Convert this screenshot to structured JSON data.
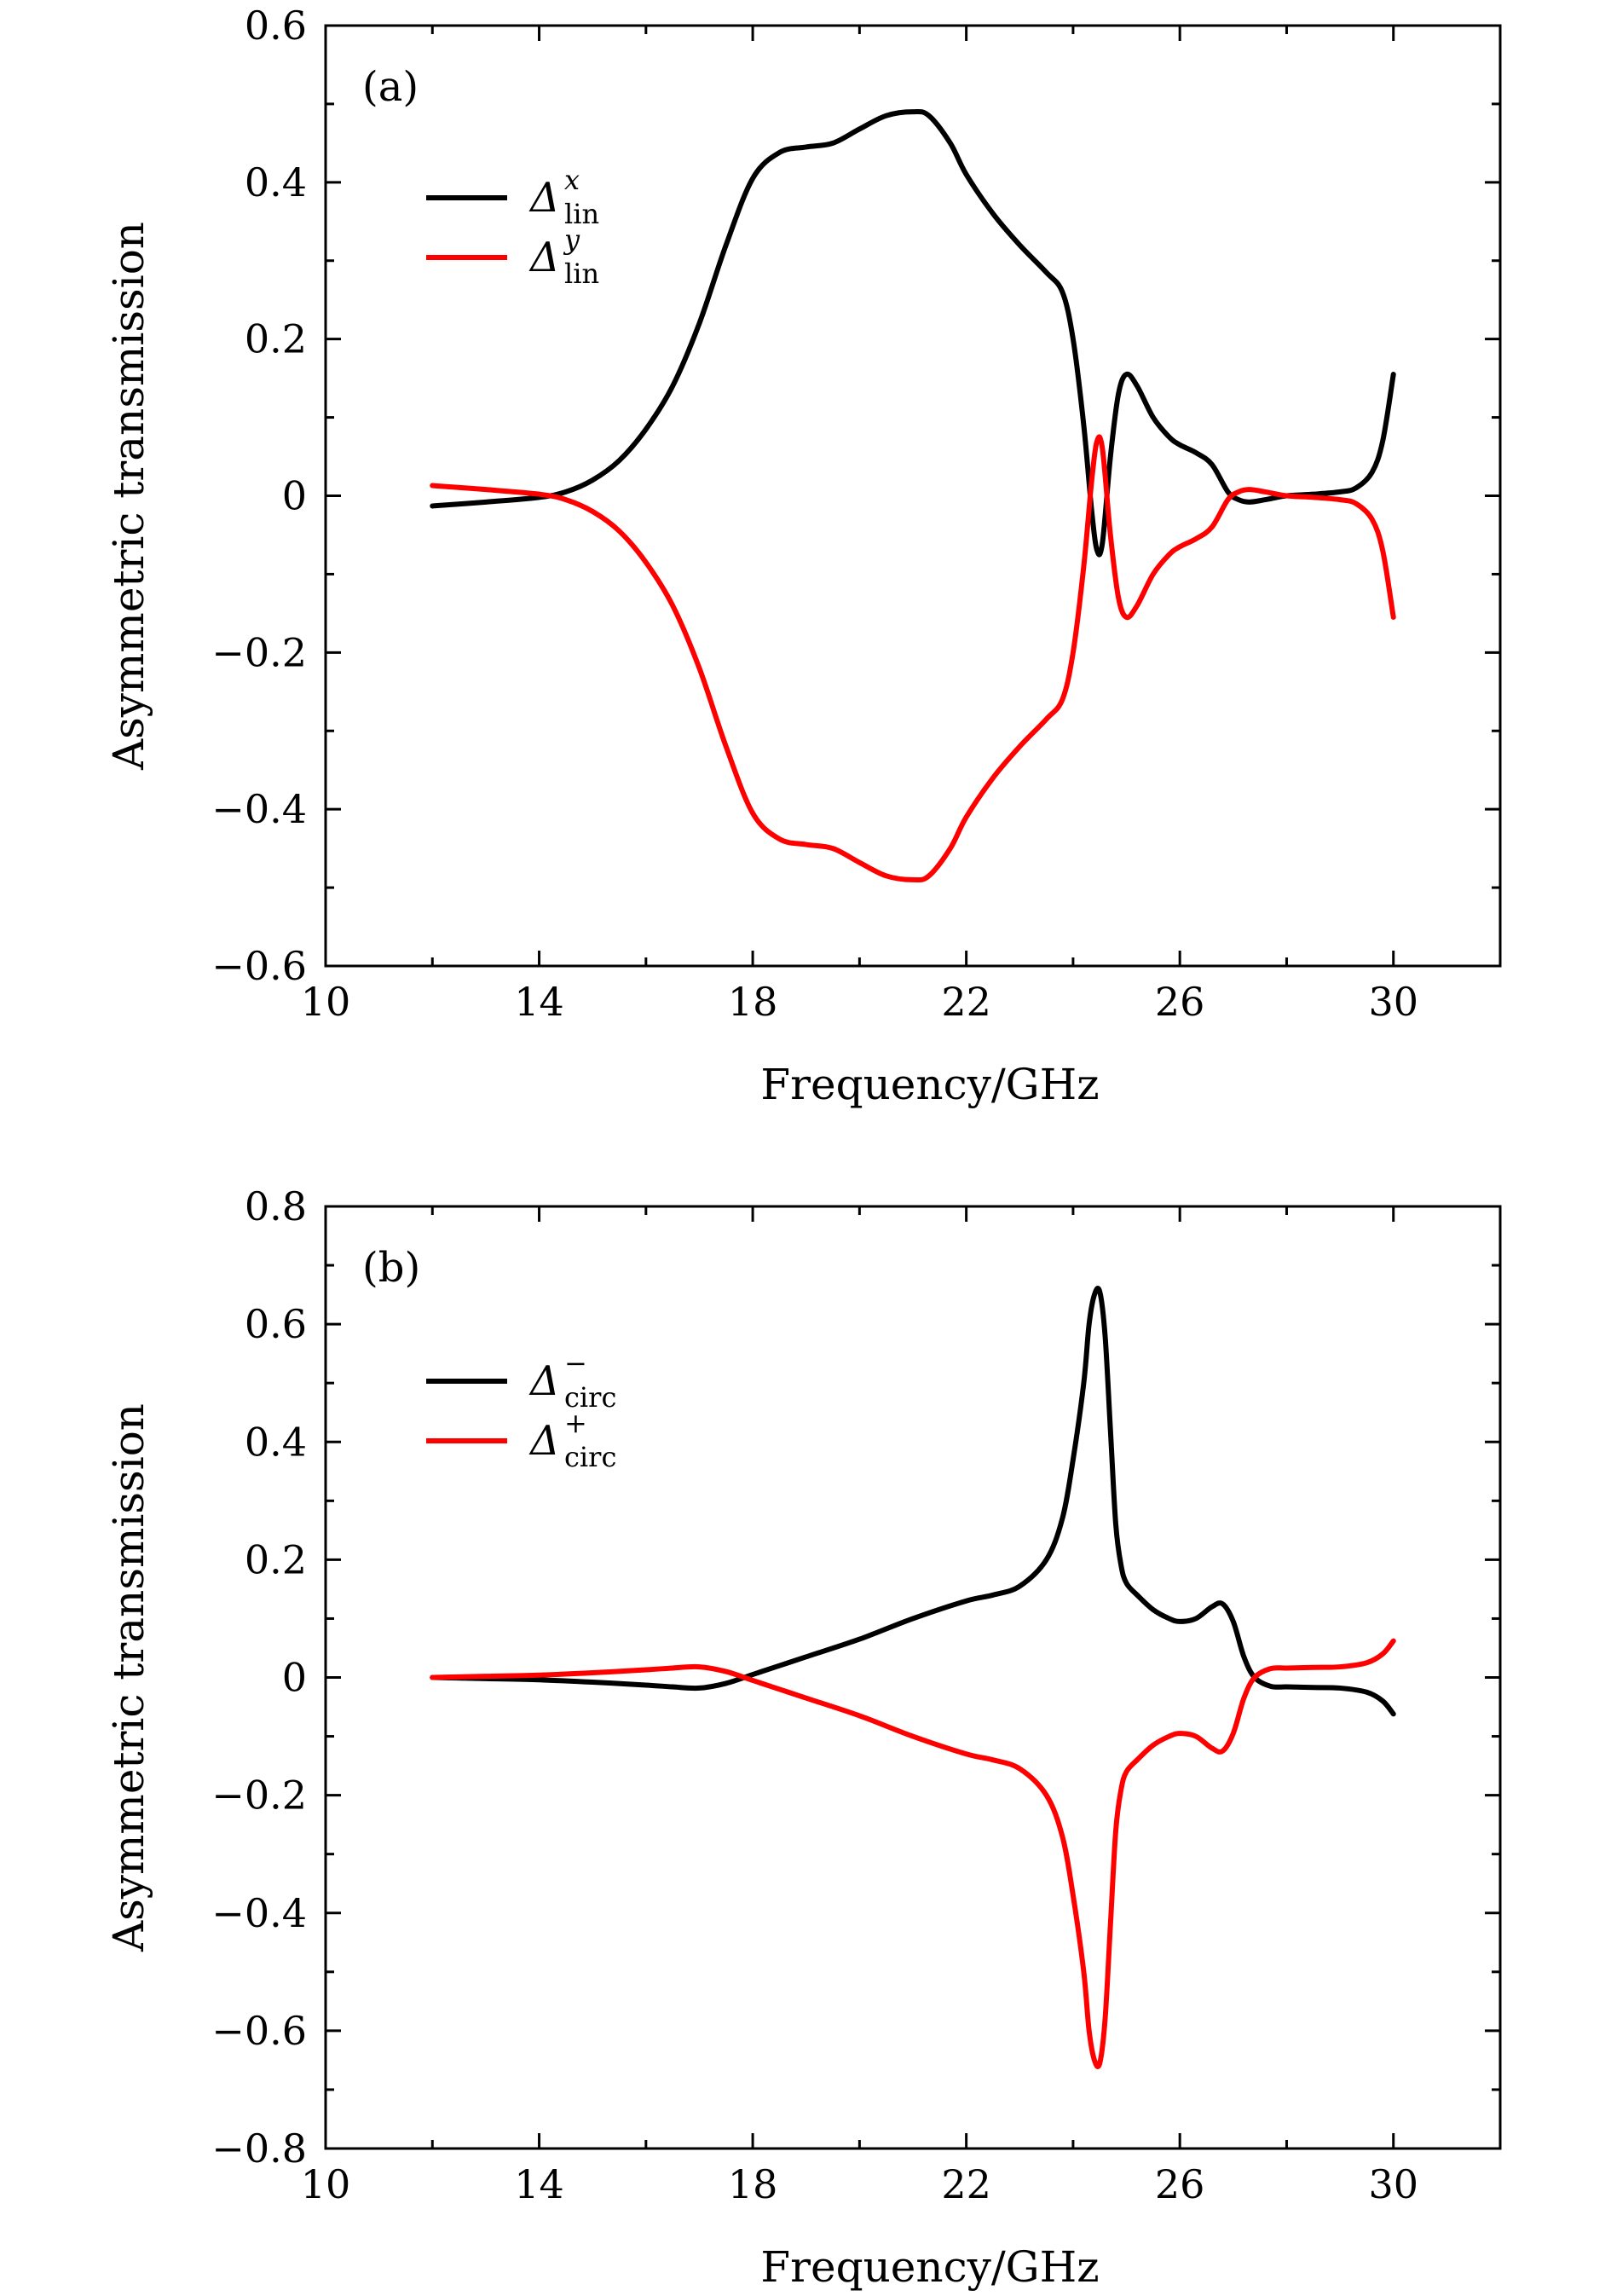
{
  "chart_data": [
    {
      "type": "line",
      "panel_label": "(a)",
      "xlabel": "Frequency/GHz",
      "ylabel": "Asymmetric transmission",
      "xlim": [
        10,
        32
      ],
      "ylim": [
        -0.6,
        0.6
      ],
      "xticks": [
        10,
        14,
        18,
        22,
        26,
        30
      ],
      "xtick_labels": [
        "10",
        "14",
        "18",
        "22",
        "26",
        "30"
      ],
      "yticks": [
        0.6,
        0.4,
        0.2,
        0,
        -0.2,
        -0.4,
        -0.6
      ],
      "ytick_labels": [
        "0.6",
        "0.4",
        "0.2",
        "0",
        "−0.2",
        "−0.4",
        "−0.6"
      ],
      "legend_position": "top-left",
      "series": [
        {
          "name": "Δ_lin^x",
          "symbol": "Δ",
          "sub": "lin",
          "sup": "x",
          "color": "#000000",
          "x": [
            12,
            13,
            14,
            14.5,
            15,
            15.5,
            16,
            16.5,
            17,
            17.5,
            18,
            18.5,
            19,
            19.5,
            20,
            20.5,
            21,
            21.3,
            21.7,
            22,
            22.5,
            23,
            23.5,
            23.8,
            24.0,
            24.2,
            24.35,
            24.45,
            24.55,
            24.7,
            24.85,
            25.0,
            25.2,
            25.5,
            25.8,
            26.0,
            26.3,
            26.6,
            26.9,
            27.1,
            27.3,
            27.6,
            28,
            28.5,
            29,
            29.3,
            29.6,
            29.8,
            30
          ],
          "y": [
            -0.013,
            -0.008,
            -0.002,
            0.005,
            0.02,
            0.045,
            0.085,
            0.14,
            0.22,
            0.32,
            0.405,
            0.438,
            0.445,
            0.45,
            0.468,
            0.485,
            0.49,
            0.485,
            0.45,
            0.41,
            0.36,
            0.32,
            0.285,
            0.26,
            0.2,
            0.09,
            -0.02,
            -0.07,
            -0.06,
            0.05,
            0.13,
            0.155,
            0.14,
            0.1,
            0.075,
            0.065,
            0.055,
            0.04,
            0.005,
            -0.005,
            -0.008,
            -0.005,
            0.0,
            0.002,
            0.005,
            0.01,
            0.03,
            0.07,
            0.155
          ]
        },
        {
          "name": "Δ_lin^y",
          "symbol": "Δ",
          "sub": "lin",
          "sup": "y",
          "color": "#ff0000",
          "x": [
            12,
            13,
            14,
            14.5,
            15,
            15.5,
            16,
            16.5,
            17,
            17.5,
            18,
            18.5,
            19,
            19.5,
            20,
            20.5,
            21,
            21.3,
            21.7,
            22,
            22.5,
            23,
            23.5,
            23.8,
            24.0,
            24.2,
            24.35,
            24.45,
            24.55,
            24.7,
            24.85,
            25.0,
            25.2,
            25.5,
            25.8,
            26.0,
            26.3,
            26.6,
            26.9,
            27.1,
            27.3,
            27.6,
            28,
            28.5,
            29,
            29.3,
            29.6,
            29.8,
            30
          ],
          "y": [
            0.013,
            0.008,
            0.002,
            -0.005,
            -0.02,
            -0.045,
            -0.085,
            -0.14,
            -0.22,
            -0.32,
            -0.405,
            -0.438,
            -0.445,
            -0.45,
            -0.468,
            -0.485,
            -0.49,
            -0.485,
            -0.45,
            -0.41,
            -0.36,
            -0.32,
            -0.285,
            -0.26,
            -0.2,
            -0.09,
            0.02,
            0.07,
            0.06,
            -0.05,
            -0.13,
            -0.155,
            -0.14,
            -0.1,
            -0.075,
            -0.065,
            -0.055,
            -0.04,
            -0.005,
            0.005,
            0.008,
            0.005,
            0.0,
            -0.002,
            -0.005,
            -0.01,
            -0.03,
            -0.07,
            -0.155
          ]
        }
      ]
    },
    {
      "type": "line",
      "panel_label": "(b)",
      "xlabel": "Frequency/GHz",
      "ylabel": "Asymmetric transmission",
      "xlim": [
        10,
        32
      ],
      "ylim": [
        -0.8,
        0.8
      ],
      "xticks": [
        10,
        14,
        18,
        22,
        26,
        30
      ],
      "xtick_labels": [
        "10",
        "14",
        "18",
        "22",
        "26",
        "30"
      ],
      "yticks": [
        0.8,
        0.6,
        0.4,
        0.2,
        0,
        -0.2,
        -0.4,
        -0.6,
        -0.8
      ],
      "ytick_labels": [
        "0.8",
        "0.6",
        "0.4",
        "0.2",
        "0",
        "−0.2",
        "−0.4",
        "−0.6",
        "−0.8"
      ],
      "legend_position": "top-left",
      "series": [
        {
          "name": "Δ_circ^−",
          "symbol": "Δ",
          "sub": "circ",
          "sup": "−",
          "color": "#000000",
          "x": [
            12,
            13,
            14,
            15,
            16,
            16.5,
            17,
            17.5,
            18,
            18.5,
            19,
            20,
            21,
            22,
            22.5,
            23,
            23.5,
            23.8,
            24.0,
            24.2,
            24.3,
            24.4,
            24.5,
            24.6,
            24.7,
            24.8,
            24.9,
            25.0,
            25.2,
            25.5,
            25.8,
            26.0,
            26.3,
            26.6,
            26.8,
            27.0,
            27.2,
            27.4,
            27.7,
            28,
            28.5,
            29,
            29.5,
            29.8,
            30
          ],
          "y": [
            0.0,
            -0.002,
            -0.004,
            -0.008,
            -0.013,
            -0.016,
            -0.018,
            -0.01,
            0.005,
            0.02,
            0.035,
            0.065,
            0.1,
            0.13,
            0.14,
            0.155,
            0.2,
            0.27,
            0.37,
            0.5,
            0.6,
            0.65,
            0.655,
            0.58,
            0.42,
            0.26,
            0.19,
            0.16,
            0.14,
            0.115,
            0.1,
            0.095,
            0.1,
            0.12,
            0.125,
            0.095,
            0.035,
            0.0,
            -0.015,
            -0.016,
            -0.017,
            -0.018,
            -0.025,
            -0.04,
            -0.062
          ]
        },
        {
          "name": "Δ_circ^+",
          "symbol": "Δ",
          "sub": "circ",
          "sup": "+",
          "color": "#ff0000",
          "x": [
            12,
            13,
            14,
            15,
            16,
            16.5,
            17,
            17.5,
            18,
            18.5,
            19,
            20,
            21,
            22,
            22.5,
            23,
            23.5,
            23.8,
            24.0,
            24.2,
            24.3,
            24.4,
            24.5,
            24.6,
            24.7,
            24.8,
            24.9,
            25.0,
            25.2,
            25.5,
            25.8,
            26.0,
            26.3,
            26.6,
            26.8,
            27.0,
            27.2,
            27.4,
            27.7,
            28,
            28.5,
            29,
            29.5,
            29.8,
            30
          ],
          "y": [
            0.0,
            0.002,
            0.004,
            0.008,
            0.013,
            0.016,
            0.018,
            0.01,
            -0.005,
            -0.02,
            -0.035,
            -0.065,
            -0.1,
            -0.13,
            -0.14,
            -0.155,
            -0.2,
            -0.27,
            -0.37,
            -0.5,
            -0.6,
            -0.65,
            -0.655,
            -0.58,
            -0.42,
            -0.26,
            -0.19,
            -0.16,
            -0.14,
            -0.115,
            -0.1,
            -0.095,
            -0.1,
            -0.12,
            -0.125,
            -0.095,
            -0.035,
            0.0,
            0.015,
            0.016,
            0.017,
            0.018,
            0.025,
            0.04,
            0.062
          ]
        }
      ]
    }
  ]
}
